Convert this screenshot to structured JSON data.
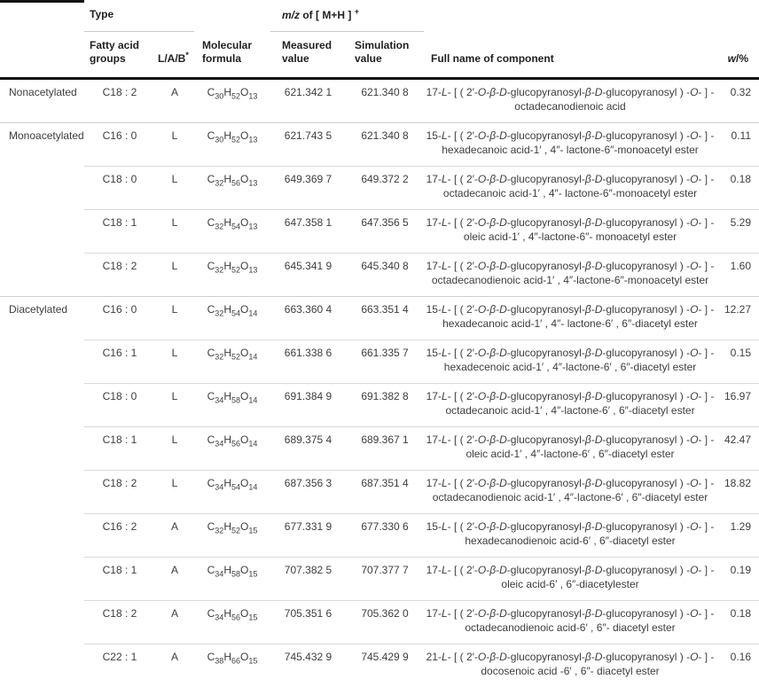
{
  "header": {
    "type": "Type",
    "mz_italic": "m/z",
    "mz_text": " of  [ M+H ] ",
    "mz_sup": "+",
    "fatty_line1": "Fatty acid",
    "fatty_line2": "groups",
    "lab": "L/A/B",
    "lab_sup": "*",
    "formula_line1": "Molecular",
    "formula_line2": "formula",
    "measured_line1": "Measured",
    "measured_line2": "value",
    "simulation_line1": "Simulation",
    "simulation_line2": "value",
    "fullname": "Full name of component",
    "w_italic": "w",
    "w_rest": "/%"
  },
  "rows": [
    {
      "type": "Nonacetylated",
      "fatty": "C18 : 2",
      "lab": "A",
      "formula": "C30H52O13",
      "measured": "621.342 1",
      "simulation": "621.340 8",
      "name1": "17-L- [ ( 2′-O-β-D-glucopyranosyl-β-D-glucopyranosyl ) -O- ] -",
      "name2": "octadecanodienoic acid",
      "w": "0.32"
    },
    {
      "type": "Monoacetylated",
      "fatty": "C16 : 0",
      "lab": "L",
      "formula": "C30H52O13",
      "measured": "621.743 5",
      "simulation": "621.340 8",
      "name1": "15-L- [ ( 2′-O-β-D-glucopyranosyl-β-D-glucopyranosyl ) -O- ] -",
      "name2": "hexadecanoic acid-1′ , 4″- lactone-6″-monoacetyl ester",
      "w": "0.11"
    },
    {
      "fatty": "C18 : 0",
      "lab": "L",
      "formula": "C32H56O13",
      "measured": "649.369 7",
      "simulation": "649.372 2",
      "name1": "17-L- [ ( 2′-O-β-D-glucopyranosyl-β-D-glucopyranosyl ) -O- ] -",
      "name2": "octadecanoic acid-1′ , 4″- lactone-6″-monoacetyl ester",
      "w": "0.18"
    },
    {
      "fatty": "C18 : 1",
      "lab": "L",
      "formula": "C32H54O13",
      "measured": "647.358 1",
      "simulation": "647.356 5",
      "name1": "17-L- [ ( 2′-O-β-D-glucopyranosyl-β-D-glucopyranosyl ) -O- ] -",
      "name2": "oleic acid-1′ , 4″-lactone-6″- monoacetyl ester",
      "w": "5.29"
    },
    {
      "fatty": "C18 : 2",
      "lab": "L",
      "formula": "C32H52O13",
      "measured": "645.341 9",
      "simulation": "645.340 8",
      "name1": "17-L- [ ( 2′-O-β-D-glucopyranosyl-β-D-glucopyranosyl ) -O- ] -",
      "name2": "octadecanodienoic acid-1′ , 4″-lactone-6″-monoacetyl ester",
      "w": "1.60"
    },
    {
      "type": "Diacetylated",
      "fatty": "C16 : 0",
      "lab": "L",
      "formula": "C32H54O14",
      "measured": "663.360 4",
      "simulation": "663.351 4",
      "name1": "15-L- [ ( 2′-O-β-D-glucopyranosyl-β-D-glucopyranosyl ) -O- ] -",
      "name2": "hexadecanoic acid-1′ , 4″- lactone-6′ , 6″-diacetyl ester",
      "w": "12.27"
    },
    {
      "fatty": "C16 : 1",
      "lab": "L",
      "formula": "C32H52O14",
      "measured": "661.338 6",
      "simulation": "661.335 7",
      "name1": "15-L- [ ( 2′-O-β-D-glucopyranosyl-β-D-glucopyranosyl ) -O- ] -",
      "name2": "hexadecenoic acid-1′ , 4″-lactone-6′ , 6″-diacetyl ester",
      "w": "0.15"
    },
    {
      "fatty": "C18 : 0",
      "lab": "L",
      "formula": "C34H58O14",
      "measured": "691.384 9",
      "simulation": "691.382 8",
      "name1": "17-L- [ ( 2′-O-β-D-glucopyranosyl-β-D-glucopyranosyl ) -O- ] -",
      "name2": "octadecanoic acid-1′ , 4″-lactone-6′ , 6″-diacetyl ester",
      "w": "16.97"
    },
    {
      "fatty": "C18 : 1",
      "lab": "L",
      "formula": "C34H56O14",
      "measured": "689.375 4",
      "simulation": "689.367 1",
      "name1": "17-L- [ ( 2′-O-β-D-glucopyranosyl-β-D-glucopyranosyl ) -O- ] -",
      "name2": "oleic acid-1′ , 4″-lactone-6′ , 6″-diacetyl ester",
      "w": "42.47"
    },
    {
      "fatty": "C18 : 2",
      "lab": "L",
      "formula": "C34H54O14",
      "measured": "687.356 3",
      "simulation": "687.351 4",
      "name1": "17-L- [ ( 2′-O-β-D-glucopyranosyl-β-D-glucopyranosyl ) -O- ] -",
      "name2": "octadecanodienoic acid-1′ , 4″-lactone-6′ , 6″-diacetyl ester",
      "w": "18.82"
    },
    {
      "fatty": "C16 : 2",
      "lab": "A",
      "formula": "C32H52O15",
      "measured": "677.331 9",
      "simulation": "677.330 6",
      "name1": "15-L- [ ( 2′-O-β-D-glucopyranosyl-β-D-glucopyranosyl ) -O- ] -",
      "name2": "hexadecanodienoic acid-6′ , 6″-diacetyl ester",
      "w": "1.29"
    },
    {
      "fatty": "C18 : 1",
      "lab": "A",
      "formula": "C34H58O15",
      "measured": "707.382 5",
      "simulation": "707.377 7",
      "name1": "17-L- [ ( 2′-O-β-D-glucopyranosyl-β-D-glucopyranosyl ) -O- ] -",
      "name2": "oleic acid-6′ , 6″-diacetylester",
      "w": "0.19"
    },
    {
      "fatty": "C18 : 2",
      "lab": "A",
      "formula": "C34H56O15",
      "measured": "705.351 6",
      "simulation": "705.362 0",
      "name1": "17-L- [ ( 2′-O-β-D-glucopyranosyl-β-D-glucopyranosyl ) -O- ] -",
      "name2": "octadecanodienoic acid-6′ , 6″- diacetyl ester",
      "w": "0.18"
    },
    {
      "fatty": "C22 : 1",
      "lab": "A",
      "formula": "C38H66O15",
      "measured": "745.432 9",
      "simulation": "745.429 9",
      "name1": "21-L- [ ( 2′-O-β-D-glucopyranosyl-β-D-glucopyranosyl ) -O- ] -",
      "name2": "docosenoic acid -6′ , 6″- diacetyl ester",
      "w": "0.16"
    }
  ]
}
